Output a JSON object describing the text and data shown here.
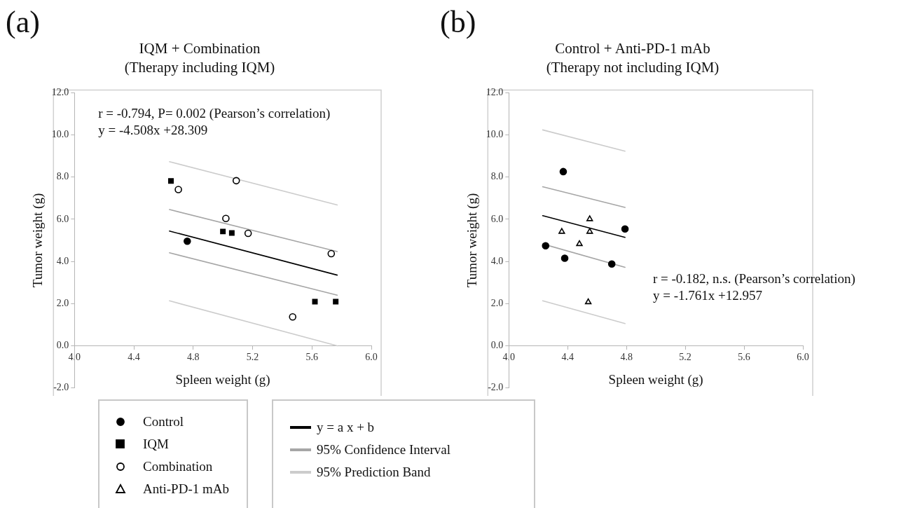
{
  "chart_data": [
    {
      "type": "scatter",
      "title": "IQM + Combination",
      "subtitle": "(Therapy including IQM)",
      "xlabel": "Spleen weight (g)",
      "ylabel": "Tumor weight (g)",
      "annotations": [
        "(a)",
        "r = -0.794, P= 0.002 (Pearson’s correlation)",
        "y = -4.508x +28.309"
      ],
      "xlim": [
        4.0,
        6.0
      ],
      "xticks": [
        {
          "value": 4.0,
          "label": "4.0"
        },
        {
          "value": 4.4,
          "label": "4.4"
        },
        {
          "value": 4.8,
          "label": "4.8"
        },
        {
          "value": 5.2,
          "label": "5.2"
        },
        {
          "value": 5.6,
          "label": "5.6"
        },
        {
          "value": 6.0,
          "label": "6.0"
        }
      ],
      "ylim": [
        -2.0,
        12.0
      ],
      "yticks": [
        {
          "value": -2.0,
          "label": "-2.0"
        },
        {
          "value": 0.0,
          "label": "0.0"
        },
        {
          "value": 2.0,
          "label": "2.0"
        },
        {
          "value": 4.0,
          "label": "4.0"
        },
        {
          "value": 6.0,
          "label": "6.0"
        },
        {
          "value": 8.0,
          "label": "8.0"
        },
        {
          "value": 10.0,
          "label": "10.0"
        },
        {
          "value": 12.0,
          "label": "12.0"
        }
      ],
      "grid": false,
      "legend": "bottom",
      "series": [
        {
          "name": "Control",
          "type": "scatter",
          "marker": "circle",
          "color": "#000000",
          "x": [
            4.76
          ],
          "values": [
            4.96
          ]
        },
        {
          "name": "IQM",
          "type": "scatter",
          "marker": "square",
          "color": "#000000",
          "x": [
            4.65,
            5.0,
            5.06,
            5.62,
            5.76
          ],
          "values": [
            7.82,
            5.42,
            5.35,
            2.09,
            2.09
          ]
        },
        {
          "name": "Combination",
          "type": "scatter",
          "marker": "circle",
          "color": "#ffffff",
          "x": [
            4.7,
            5.09,
            5.02,
            5.17,
            5.73,
            5.47
          ],
          "values": [
            7.41,
            7.83,
            6.04,
            5.33,
            4.37,
            1.37
          ]
        },
        {
          "name": "y = a x + b",
          "type": "line",
          "marker": "none",
          "color": "#000000",
          "x": [
            4.64,
            5.77
          ],
          "values": [
            5.44,
            3.35
          ]
        },
        {
          "name": "95% Confidence Interval",
          "type": "line",
          "marker": "none",
          "color": "#a6a6a6",
          "x": [
            4.64,
            5.77
          ],
          "values": [
            6.46,
            4.47
          ]
        },
        {
          "type": "line",
          "marker": "none",
          "color": "#a6a6a6",
          "x": [
            4.64,
            5.77
          ],
          "values": [
            4.41,
            2.4
          ]
        },
        {
          "name": "95% Prediction Band",
          "type": "line",
          "marker": "none",
          "color": "#cccccc",
          "x": [
            4.64,
            5.77
          ],
          "values": [
            8.73,
            6.68
          ]
        },
        {
          "type": "line",
          "marker": "none",
          "color": "#cccccc",
          "x": [
            4.64,
            5.77
          ],
          "values": [
            2.13,
            0.0
          ]
        }
      ]
    },
    {
      "type": "scatter",
      "title": "Control + Anti-PD-1 mAb",
      "subtitle": "(Therapy not including IQM)",
      "xlabel": "Spleen weight (g)",
      "ylabel": "Tumor weight (g)",
      "annotations": [
        "(b)",
        "r = -0.182, n.s. (Pearson’s correlation)",
        "y = -1.761x +12.957"
      ],
      "xlim": [
        4.0,
        6.0
      ],
      "xticks": [
        {
          "value": 4.0,
          "label": "4.0"
        },
        {
          "value": 4.4,
          "label": "4.4"
        },
        {
          "value": 4.8,
          "label": "4.8"
        },
        {
          "value": 5.2,
          "label": "5.2"
        },
        {
          "value": 5.6,
          "label": "5.6"
        },
        {
          "value": 6.0,
          "label": "6.0"
        }
      ],
      "ylim": [
        -2.0,
        12.0
      ],
      "yticks": [
        {
          "value": -2.0,
          "label": "-2.0"
        },
        {
          "value": 0.0,
          "label": "0.0"
        },
        {
          "value": 2.0,
          "label": "2.0"
        },
        {
          "value": 4.0,
          "label": "4.0"
        },
        {
          "value": 6.0,
          "label": "6.0"
        },
        {
          "value": 8.0,
          "label": "8.0"
        },
        {
          "value": 10.0,
          "label": "10.0"
        },
        {
          "value": 12.0,
          "label": "12.0"
        }
      ],
      "grid": false,
      "legend": "bottom",
      "series": [
        {
          "type": "scatter",
          "marker": "circle",
          "color": "#000000",
          "x": [
            4.37,
            4.25,
            4.38,
            4.7,
            4.79
          ],
          "values": [
            8.26,
            4.74,
            4.15,
            3.88,
            5.54
          ]
        },
        {
          "name": "Anti-PD-1 mAb",
          "type": "scatter",
          "marker": "triangle",
          "color": "#ffffff",
          "x": [
            4.36,
            4.55,
            4.55,
            4.48,
            4.54
          ],
          "values": [
            5.41,
            6.01,
            5.41,
            4.83,
            2.07
          ]
        },
        {
          "type": "line",
          "marker": "none",
          "color": "#000000",
          "x": [
            4.23,
            4.79
          ],
          "values": [
            6.17,
            5.14
          ]
        },
        {
          "type": "line",
          "marker": "none",
          "color": "#a6a6a6",
          "x": [
            4.23,
            4.79
          ],
          "values": [
            7.54,
            6.56
          ]
        },
        {
          "type": "line",
          "marker": "none",
          "color": "#a6a6a6",
          "x": [
            4.23,
            4.79
          ],
          "values": [
            4.83,
            3.72
          ]
        },
        {
          "type": "line",
          "marker": "none",
          "color": "#cccccc",
          "x": [
            4.23,
            4.79
          ],
          "values": [
            10.24,
            9.23
          ]
        },
        {
          "type": "line",
          "marker": "none",
          "color": "#cccccc",
          "x": [
            4.23,
            4.79
          ],
          "values": [
            2.13,
            1.05
          ]
        }
      ]
    }
  ]
}
